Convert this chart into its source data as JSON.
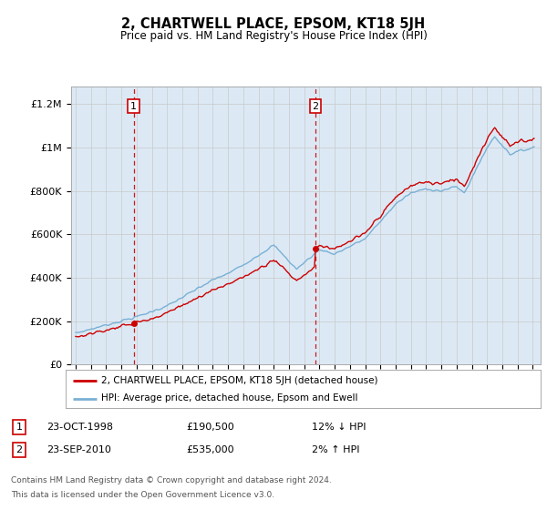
{
  "title": "2, CHARTWELL PLACE, EPSOM, KT18 5JH",
  "subtitle": "Price paid vs. HM Land Registry's House Price Index (HPI)",
  "ylabel_ticks": [
    "£0",
    "£200K",
    "£400K",
    "£600K",
    "£800K",
    "£1M",
    "£1.2M"
  ],
  "ytick_values": [
    0,
    200000,
    400000,
    600000,
    800000,
    1000000,
    1200000
  ],
  "ylim": [
    0,
    1280000
  ],
  "xlim_start": 1994.7,
  "xlim_end": 2025.5,
  "purchase1_year": 1998.81,
  "purchase1_price": 190500,
  "purchase2_year": 2010.73,
  "purchase2_price": 535000,
  "legend_property": "2, CHARTWELL PLACE, EPSOM, KT18 5JH (detached house)",
  "legend_hpi": "HPI: Average price, detached house, Epsom and Ewell",
  "table_row1_date": "23-OCT-1998",
  "table_row1_price": "£190,500",
  "table_row1_hpi": "12% ↓ HPI",
  "table_row2_date": "23-SEP-2010",
  "table_row2_price": "£535,000",
  "table_row2_hpi": "2% ↑ HPI",
  "footnote_line1": "Contains HM Land Registry data © Crown copyright and database right 2024.",
  "footnote_line2": "This data is licensed under the Open Government Licence v3.0.",
  "property_color": "#cc0000",
  "hpi_color": "#7ab0d4",
  "background_color": "#dce9f5",
  "plot_bg": "#ffffff",
  "grid_color": "#c8c8c8",
  "vline_color": "#cc0000",
  "box_color": "#cc0000"
}
